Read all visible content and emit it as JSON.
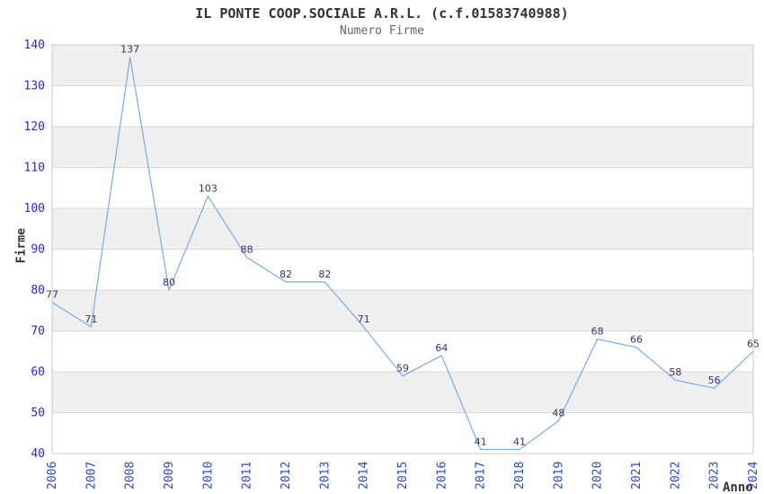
{
  "chart_data": {
    "type": "line",
    "title": "IL PONTE COOP.SOCIALE A.R.L. (c.f.01583740988)",
    "subtitle": "Numero Firme",
    "xlabel": "Anno",
    "ylabel": "Firme",
    "categories": [
      "2006",
      "2007",
      "2008",
      "2009",
      "2010",
      "2011",
      "2012",
      "2013",
      "2014",
      "2015",
      "2016",
      "2017",
      "2018",
      "2019",
      "2020",
      "2021",
      "2022",
      "2023",
      "2024"
    ],
    "values": [
      77,
      71,
      137,
      80,
      103,
      88,
      82,
      82,
      71,
      59,
      64,
      41,
      41,
      48,
      68,
      66,
      58,
      56,
      65
    ],
    "ylim": [
      40,
      140
    ],
    "ytick_step": 10,
    "grid": true,
    "legend": "none",
    "banding": "alternating horizontal gray bands from top",
    "colors": {
      "line": "#79abe2",
      "value_label": "#333366",
      "y_tick_label": "#2929cc",
      "x_tick_label": "#2646d9",
      "title": "#333333",
      "subtitle": "#666666",
      "axis_title": "#333333",
      "band": "#efefef",
      "gridline": "#d9d9d9",
      "plot_border": "#c9c9c9",
      "background": "#ffffff"
    }
  }
}
